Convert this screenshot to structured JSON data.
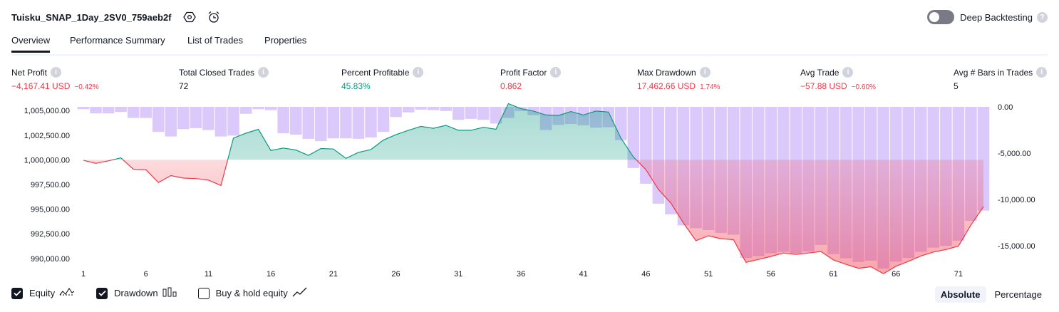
{
  "header": {
    "title": "Tuisku_SNAP_1Day_2SV0_759aeb2f",
    "deep_backtesting_label": "Deep Backtesting",
    "deep_backtesting_enabled": false
  },
  "tabs": [
    {
      "label": "Overview",
      "active": true
    },
    {
      "label": "Performance Summary",
      "active": false
    },
    {
      "label": "List of Trades",
      "active": false
    },
    {
      "label": "Properties",
      "active": false
    }
  ],
  "metrics": {
    "net_profit": {
      "label": "Net Profit",
      "value": "−4,167.41 USD",
      "pct": "−0.42%"
    },
    "total_closed_trades": {
      "label": "Total Closed Trades",
      "value": "72"
    },
    "percent_profitable": {
      "label": "Percent Profitable",
      "value": "45.83%"
    },
    "profit_factor": {
      "label": "Profit Factor",
      "value": "0.862"
    },
    "max_drawdown": {
      "label": "Max Drawdown",
      "value": "17,462.66 USD",
      "pct": "1.74%"
    },
    "avg_trade": {
      "label": "Avg Trade",
      "value": "−57.88 USD",
      "pct": "−0.60%"
    },
    "avg_bars": {
      "label": "Avg # Bars in Trades",
      "value": "5"
    }
  },
  "colors": {
    "profit": "#089981",
    "loss": "#f23645",
    "drawdown_bar": "#dcc9fb",
    "text": "#131722"
  },
  "chart_data": {
    "type": "line",
    "left_axis": {
      "ticks": [
        "1,005,000.00",
        "1,002,500.00",
        "1,000,000.00",
        "997,500.00",
        "995,000.00",
        "992,500.00",
        "990,000.00"
      ],
      "ylim": [
        988900,
        1006100
      ]
    },
    "right_axis": {
      "ticks": [
        "0.00",
        "-5,000.00",
        "-10,000.00",
        "-15,000.00"
      ],
      "ylim": [
        -18300,
        0
      ]
    },
    "x_ticks": [
      "1",
      "6",
      "11",
      "16",
      "21",
      "26",
      "31",
      "36",
      "41",
      "46",
      "51",
      "56",
      "61",
      "66",
      "71"
    ],
    "baseline": 1000000,
    "series": [
      {
        "name": "Equity",
        "x": [
          1,
          2,
          3,
          4,
          5,
          6,
          7,
          8,
          9,
          10,
          11,
          12,
          13,
          14,
          15,
          16,
          17,
          18,
          19,
          20,
          21,
          22,
          23,
          24,
          25,
          26,
          27,
          28,
          29,
          30,
          31,
          32,
          33,
          34,
          35,
          36,
          37,
          38,
          39,
          40,
          41,
          42,
          43,
          44,
          45,
          46,
          47,
          48,
          49,
          50,
          51,
          52,
          53,
          54,
          55,
          56,
          57,
          58,
          59,
          60,
          61,
          62,
          63,
          64,
          65,
          66,
          67,
          68,
          69,
          70,
          71,
          72,
          73
        ],
        "values": [
          999950,
          999650,
          999900,
          1000200,
          999050,
          999000,
          997700,
          998400,
          998150,
          998100,
          997950,
          997400,
          1002200,
          1002700,
          1003100,
          1000950,
          1001200,
          1001000,
          1000450,
          1001150,
          1001100,
          1000150,
          1000750,
          1001050,
          1002000,
          1002550,
          1003000,
          1003400,
          1003200,
          1003500,
          1003000,
          1003000,
          1003300,
          1003100,
          1005700,
          1005200,
          1004950,
          1004550,
          1004500,
          1004900,
          1004550,
          1004950,
          1004850,
          1002200,
          1000300,
          999000,
          997000,
          995600,
          993600,
          991800,
          992300,
          992000,
          991900,
          989600,
          989900,
          990200,
          990550,
          990400,
          990550,
          990700,
          989850,
          989400,
          989000,
          989150,
          988450,
          989200,
          989700,
          990250,
          990650,
          990900,
          991250,
          993400,
          995250
        ],
        "color_above": "#089981",
        "color_below": "#f23645"
      },
      {
        "name": "Drawdown",
        "values": [
          -250,
          -700,
          -700,
          -550,
          -1200,
          -1200,
          -2700,
          -3200,
          -2400,
          -2300,
          -2500,
          -3200,
          -3100,
          -750,
          -250,
          -350,
          -2850,
          -3000,
          -3450,
          -3700,
          -3400,
          -3400,
          -3450,
          -3300,
          -2700,
          -1100,
          -600,
          -300,
          -350,
          -450,
          -1400,
          -1300,
          -1400,
          -1800,
          -1200,
          -450,
          -900,
          -2500,
          -1950,
          -1850,
          -2000,
          -2250,
          -2200,
          -3600,
          -6600,
          -8300,
          -10450,
          -11600,
          -12800,
          -13100,
          -13300,
          -13600,
          -13800,
          -16300,
          -16100,
          -15800,
          -15650,
          -15800,
          -15600,
          -14900,
          -15900,
          -16350,
          -16750,
          -16600,
          -17450,
          -16700,
          -16300,
          -15650,
          -15200,
          -15000,
          -14450,
          -12300,
          -11200
        ]
      }
    ]
  },
  "legend": {
    "equity": {
      "label": "Equity",
      "checked": true
    },
    "drawdown": {
      "label": "Drawdown",
      "checked": true
    },
    "buy_hold": {
      "label": "Buy & hold equity",
      "checked": false
    }
  },
  "modes": [
    {
      "label": "Absolute",
      "active": true
    },
    {
      "label": "Percentage",
      "active": false
    }
  ]
}
